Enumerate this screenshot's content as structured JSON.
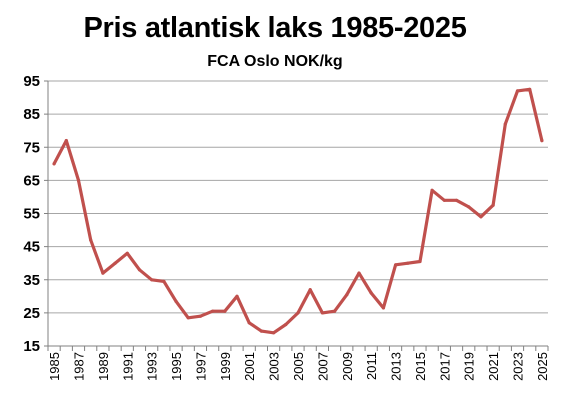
{
  "chart_data": {
    "type": "line",
    "title": "Pris atlantisk laks 1985-2025",
    "subtitle": "FCA Oslo NOK/kg",
    "xlabel": "",
    "ylabel": "",
    "ylim": [
      15,
      95
    ],
    "yticks": [
      15,
      25,
      35,
      45,
      55,
      65,
      75,
      85,
      95
    ],
    "xticks": [
      1985,
      1987,
      1989,
      1991,
      1993,
      1995,
      1997,
      1999,
      2001,
      2003,
      2005,
      2007,
      2009,
      2011,
      2013,
      2015,
      2017,
      2019,
      2021,
      2023,
      2025
    ],
    "grid": true,
    "legend": "none",
    "color": "#C0504D",
    "series": [
      {
        "x": [
          1985,
          1986,
          1987,
          1988,
          1989,
          1990,
          1991,
          1992,
          1993,
          1994,
          1995,
          1996,
          1997,
          1998,
          1999,
          2000,
          2001,
          2002,
          2003,
          2004,
          2005,
          2006,
          2007,
          2008,
          2009,
          2010,
          2011,
          2012,
          2013,
          2014,
          2015,
          2016,
          2017,
          2018,
          2019,
          2020,
          2021,
          2022,
          2023,
          2024,
          2025
        ],
        "values": [
          70,
          77,
          65,
          47,
          37,
          40,
          43,
          38,
          35,
          34.5,
          28.5,
          23.5,
          24,
          25.5,
          25.5,
          30,
          22,
          19.5,
          19,
          21.5,
          25,
          32,
          25,
          25.5,
          30.5,
          37,
          31,
          26.5,
          39.5,
          40,
          40.5,
          62,
          59,
          59,
          57,
          54,
          57.5,
          82,
          92,
          92.5,
          77
        ]
      }
    ]
  }
}
